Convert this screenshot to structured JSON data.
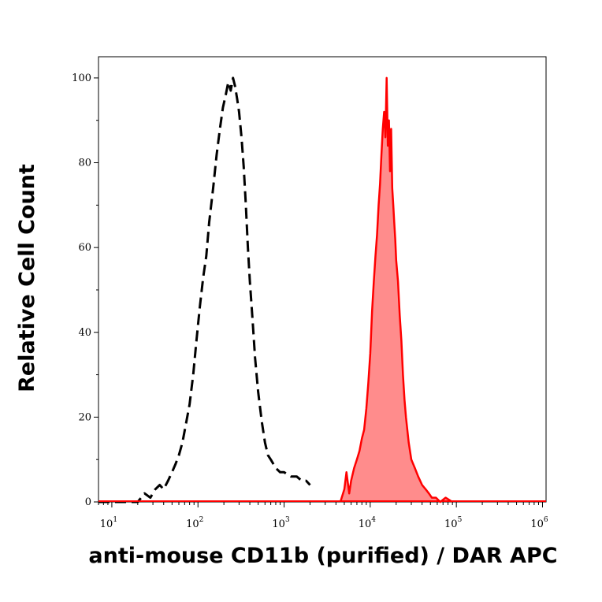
{
  "chart_data": {
    "type": "area",
    "xlabel": "anti-mouse CD11b (purified) / DAR APC",
    "ylabel": "Relative Cell Count",
    "x_scale": "log",
    "xlim": [
      7,
      1100000
    ],
    "ylim": [
      0,
      105
    ],
    "x_ticks": [
      {
        "base": "10",
        "exp": "1",
        "value": 10
      },
      {
        "base": "10",
        "exp": "2",
        "value": 100
      },
      {
        "base": "10",
        "exp": "3",
        "value": 1000
      },
      {
        "base": "10",
        "exp": "4",
        "value": 10000
      },
      {
        "base": "10",
        "exp": "5",
        "value": 100000
      },
      {
        "base": "10",
        "exp": "6",
        "value": 1000000
      }
    ],
    "y_ticks": [
      "0",
      "20",
      "40",
      "60",
      "80",
      "100"
    ],
    "grid": false,
    "colors": {
      "filled_line": "#ff0000",
      "filled_fill": "#ff8c8c",
      "dashed_line": "#000000"
    },
    "series": [
      {
        "style": "dashed-black-outline",
        "x": [
          7,
          10,
          13,
          16,
          20,
          24,
          28,
          32,
          36,
          40,
          45,
          50,
          55,
          60,
          66,
          72,
          80,
          88,
          96,
          105,
          115,
          125,
          135,
          150,
          165,
          180,
          195,
          210,
          225,
          240,
          255,
          270,
          285,
          300,
          320,
          340,
          360,
          380,
          400,
          430,
          460,
          500,
          550,
          600,
          650,
          700,
          800,
          900,
          1000,
          1200,
          1400,
          1600,
          1800,
          2000
        ],
        "y": [
          0,
          0,
          0,
          0,
          0,
          2,
          1,
          3,
          4,
          3,
          5,
          7,
          9,
          11,
          14,
          18,
          23,
          30,
          38,
          46,
          53,
          58,
          66,
          74,
          82,
          88,
          93,
          96,
          99,
          97,
          100,
          98,
          95,
          92,
          86,
          79,
          70,
          60,
          52,
          43,
          34,
          26,
          19,
          14,
          11,
          10,
          8,
          7,
          7,
          6,
          6,
          5,
          5,
          4
        ]
      },
      {
        "style": "filled-red",
        "x": [
          4500,
          5000,
          5300,
          5700,
          6000,
          6500,
          7000,
          7500,
          8000,
          8500,
          9000,
          9500,
          10000,
          10500,
          11000,
          11500,
          12000,
          12500,
          13000,
          13500,
          14000,
          14500,
          15000,
          15500,
          16000,
          16500,
          17000,
          17500,
          18000,
          18500,
          19000,
          19500,
          20000,
          21000,
          22000,
          23000,
          24000,
          25000,
          26000,
          28000,
          30000,
          33000,
          36000,
          40000,
          44000,
          48000,
          52000,
          58000,
          65000,
          75000,
          90000
        ],
        "y": [
          0,
          3,
          7,
          2,
          5,
          8,
          10,
          12,
          15,
          17,
          22,
          28,
          35,
          45,
          52,
          58,
          63,
          70,
          75,
          82,
          88,
          92,
          86,
          100,
          84,
          90,
          78,
          88,
          74,
          70,
          66,
          62,
          57,
          52,
          44,
          38,
          30,
          24,
          20,
          14,
          10,
          8,
          6,
          4,
          3,
          2,
          1,
          1,
          0,
          1,
          0
        ]
      }
    ]
  }
}
